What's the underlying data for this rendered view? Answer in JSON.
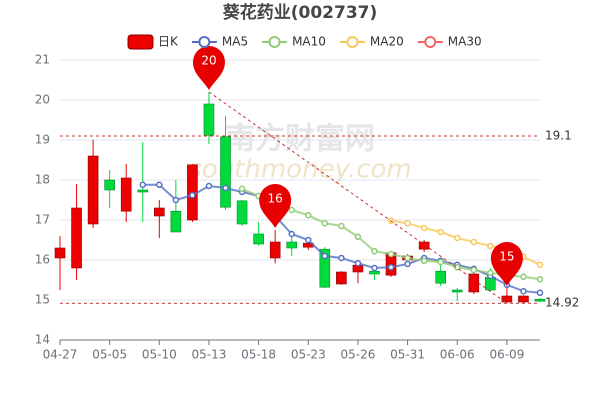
{
  "chart_data": {
    "type": "candlestick",
    "title": "葵花药业(002737)",
    "watermark": [
      "南方财富网",
      "southmoney.com"
    ],
    "categories": [
      "04-27",
      null,
      null,
      "05-05",
      null,
      null,
      "05-10",
      null,
      null,
      "05-13",
      null,
      null,
      "05-18",
      null,
      null,
      "05-23",
      null,
      null,
      "05-26",
      null,
      null,
      "05-31",
      null,
      null,
      "06-06",
      null,
      null,
      "06-09",
      null,
      null
    ],
    "candles": {
      "name": "日K",
      "up_color": "#ec0000",
      "down_color": "#00da3c",
      "open": [
        16.05,
        15.8,
        16.9,
        18.0,
        17.22,
        17.75,
        17.1,
        17.22,
        17.0,
        19.9,
        19.08,
        17.48,
        16.65,
        16.05,
        16.45,
        16.32,
        16.27,
        15.4,
        15.7,
        15.72,
        15.62,
        16.0,
        16.27,
        15.72,
        15.25,
        15.2,
        15.57,
        14.95,
        14.95,
        15.02
      ],
      "close": [
        16.3,
        17.3,
        18.6,
        17.75,
        18.05,
        17.7,
        17.3,
        16.7,
        18.38,
        19.12,
        17.32,
        16.9,
        16.4,
        16.45,
        16.3,
        16.42,
        15.32,
        15.7,
        15.87,
        15.65,
        16.18,
        16.1,
        16.45,
        15.42,
        15.2,
        15.65,
        15.25,
        15.1,
        15.1,
        14.97
      ],
      "high": [
        16.6,
        17.9,
        19.0,
        18.25,
        18.4,
        18.95,
        17.5,
        18.0,
        18.4,
        20.2,
        19.6,
        17.5,
        16.95,
        16.75,
        16.6,
        16.55,
        16.32,
        15.72,
        16.0,
        15.85,
        16.2,
        16.15,
        16.5,
        16.0,
        15.3,
        15.8,
        15.8,
        15.3,
        15.12,
        15.05
      ],
      "low": [
        15.25,
        15.5,
        16.8,
        17.3,
        16.95,
        16.95,
        16.55,
        16.7,
        16.95,
        18.9,
        17.25,
        16.85,
        16.35,
        15.92,
        16.1,
        16.25,
        15.3,
        15.38,
        15.42,
        15.5,
        15.58,
        15.9,
        16.2,
        15.35,
        14.98,
        15.15,
        15.2,
        14.92,
        14.92,
        14.95
      ]
    },
    "series": [
      {
        "name": "MA5",
        "color": "#5470c6",
        "values": [
          null,
          null,
          null,
          null,
          null,
          17.88,
          17.88,
          17.5,
          17.62,
          17.85,
          17.8,
          17.7,
          17.6,
          17.1,
          16.65,
          16.5,
          16.1,
          16.05,
          15.92,
          15.8,
          15.82,
          15.9,
          16.05,
          15.98,
          15.88,
          15.78,
          15.6,
          15.38,
          15.22,
          15.18
        ]
      },
      {
        "name": "MA10",
        "color": "#91cc75",
        "values": [
          null,
          null,
          null,
          null,
          null,
          null,
          null,
          null,
          null,
          null,
          null,
          17.78,
          17.6,
          17.35,
          17.25,
          17.12,
          16.92,
          16.85,
          16.58,
          16.22,
          16.15,
          16.05,
          15.98,
          15.95,
          15.82,
          15.75,
          15.68,
          15.62,
          15.58,
          15.52
        ]
      },
      {
        "name": "MA20",
        "color": "#fac858",
        "values": [
          null,
          null,
          null,
          null,
          null,
          null,
          null,
          null,
          null,
          null,
          null,
          null,
          null,
          null,
          null,
          null,
          null,
          null,
          null,
          null,
          16.98,
          16.92,
          16.8,
          16.7,
          16.55,
          16.45,
          16.35,
          16.25,
          16.08,
          15.88
        ]
      },
      {
        "name": "MA30",
        "color": "#ee6666",
        "values": [
          null,
          null,
          null,
          null,
          null,
          null,
          null,
          null,
          null,
          null,
          null,
          null,
          null,
          null,
          null,
          null,
          null,
          null,
          null,
          null,
          null,
          null,
          null,
          null,
          null,
          null,
          null,
          null,
          null,
          null
        ]
      }
    ],
    "mark_points": [
      {
        "index": 9,
        "value": 20
      },
      {
        "index": 13,
        "value": 16
      },
      {
        "index": 27,
        "value": 15
      }
    ],
    "mark_lines": [
      19.1,
      14.92
    ],
    "ylim": [
      14,
      21
    ],
    "yticks": [
      14,
      15,
      16,
      17,
      18,
      19,
      20,
      21
    ],
    "grid": true
  }
}
